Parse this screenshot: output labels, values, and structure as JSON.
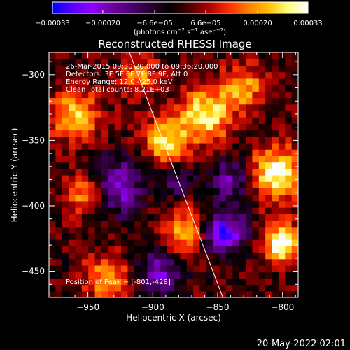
{
  "chart_data": {
    "type": "heatmap",
    "title": "Reconstructed RHESSI Image",
    "xlabel": "Heliocentric X (arcsec)",
    "ylabel": "Heliocentric Y (arcsec)",
    "xlim": [
      -980,
      -788
    ],
    "ylim": [
      -470,
      -283
    ],
    "x_ticks": [
      -950,
      -900,
      -850,
      -800
    ],
    "x_tick_labels": [
      "−950",
      "−900",
      "−850",
      "−800"
    ],
    "y_ticks": [
      -300,
      -350,
      -400,
      -450
    ],
    "y_tick_labels": [
      "−300",
      "−350",
      "−400",
      "−450"
    ],
    "colorbar": {
      "min": -0.00033,
      "max": 0.00033,
      "ticks": [
        -0.00033,
        -0.0002,
        -6.6e-05,
        6.6e-05,
        0.0002,
        0.00033
      ],
      "tick_labels": [
        "−0.00033",
        "−0.00020",
        "−6.6e−05",
        "6.6e−05",
        "0.00020",
        "0.00033"
      ],
      "units_prefix": "(photons cm",
      "units_sup1": "−2",
      "units_mid": " s",
      "units_sup2": "−1",
      "units_suffix": " asec",
      "units_sup3": "−2",
      "units_close": ")",
      "colors": [
        "#0000ff",
        "#5a00ff",
        "#9000ff",
        "#7000a0",
        "#4a0070",
        "#2a0030",
        "#000000",
        "#500000",
        "#b00000",
        "#ff3000",
        "#ff8000",
        "#ffc000",
        "#ffff80",
        "#ffffff"
      ]
    },
    "info_lines": [
      "26-Mar-2015 09:30:20.000 to 09:36:20.000",
      "Detectors: 3F 5F 6F 7F 8F 9F, Att 0",
      "Energy Range: 12.0 - 25.0 keV",
      "Clean     Total counts: 8.21E+03"
    ],
    "peak_label": "Position of Peak = [-801,-428]",
    "peak": [
      -801,
      -428
    ],
    "limb_line": [
      [
        -918,
        -283
      ],
      [
        -846,
        -470
      ]
    ],
    "sources": [
      {
        "x": -801,
        "y": -428,
        "amp": 1.0,
        "sigma": 10
      },
      {
        "x": -805,
        "y": -375,
        "amp": 0.9,
        "sigma": 14
      },
      {
        "x": -860,
        "y": -330,
        "amp": 0.85,
        "sigma": 14
      },
      {
        "x": -890,
        "y": -350,
        "amp": 0.75,
        "sigma": 12
      },
      {
        "x": -950,
        "y": -390,
        "amp": 0.7,
        "sigma": 12
      },
      {
        "x": -960,
        "y": -330,
        "amp": 0.65,
        "sigma": 14
      },
      {
        "x": -875,
        "y": -420,
        "amp": 0.7,
        "sigma": 12
      },
      {
        "x": -830,
        "y": -310,
        "amp": 0.55,
        "sigma": 12
      },
      {
        "x": -935,
        "y": -455,
        "amp": 0.6,
        "sigma": 12
      },
      {
        "x": -910,
        "y": -300,
        "amp": 0.5,
        "sigma": 10
      },
      {
        "x": -930,
        "y": -385,
        "amp": -0.8,
        "sigma": 15
      },
      {
        "x": -845,
        "y": -420,
        "amp": -0.9,
        "sigma": 12
      },
      {
        "x": -895,
        "y": -450,
        "amp": -0.6,
        "sigma": 12
      },
      {
        "x": -840,
        "y": -380,
        "amp": -0.55,
        "sigma": 12
      },
      {
        "x": -880,
        "y": -380,
        "amp": -0.5,
        "sigma": 8
      }
    ]
  },
  "footer": {
    "date": "20-May-2022 02:01"
  }
}
